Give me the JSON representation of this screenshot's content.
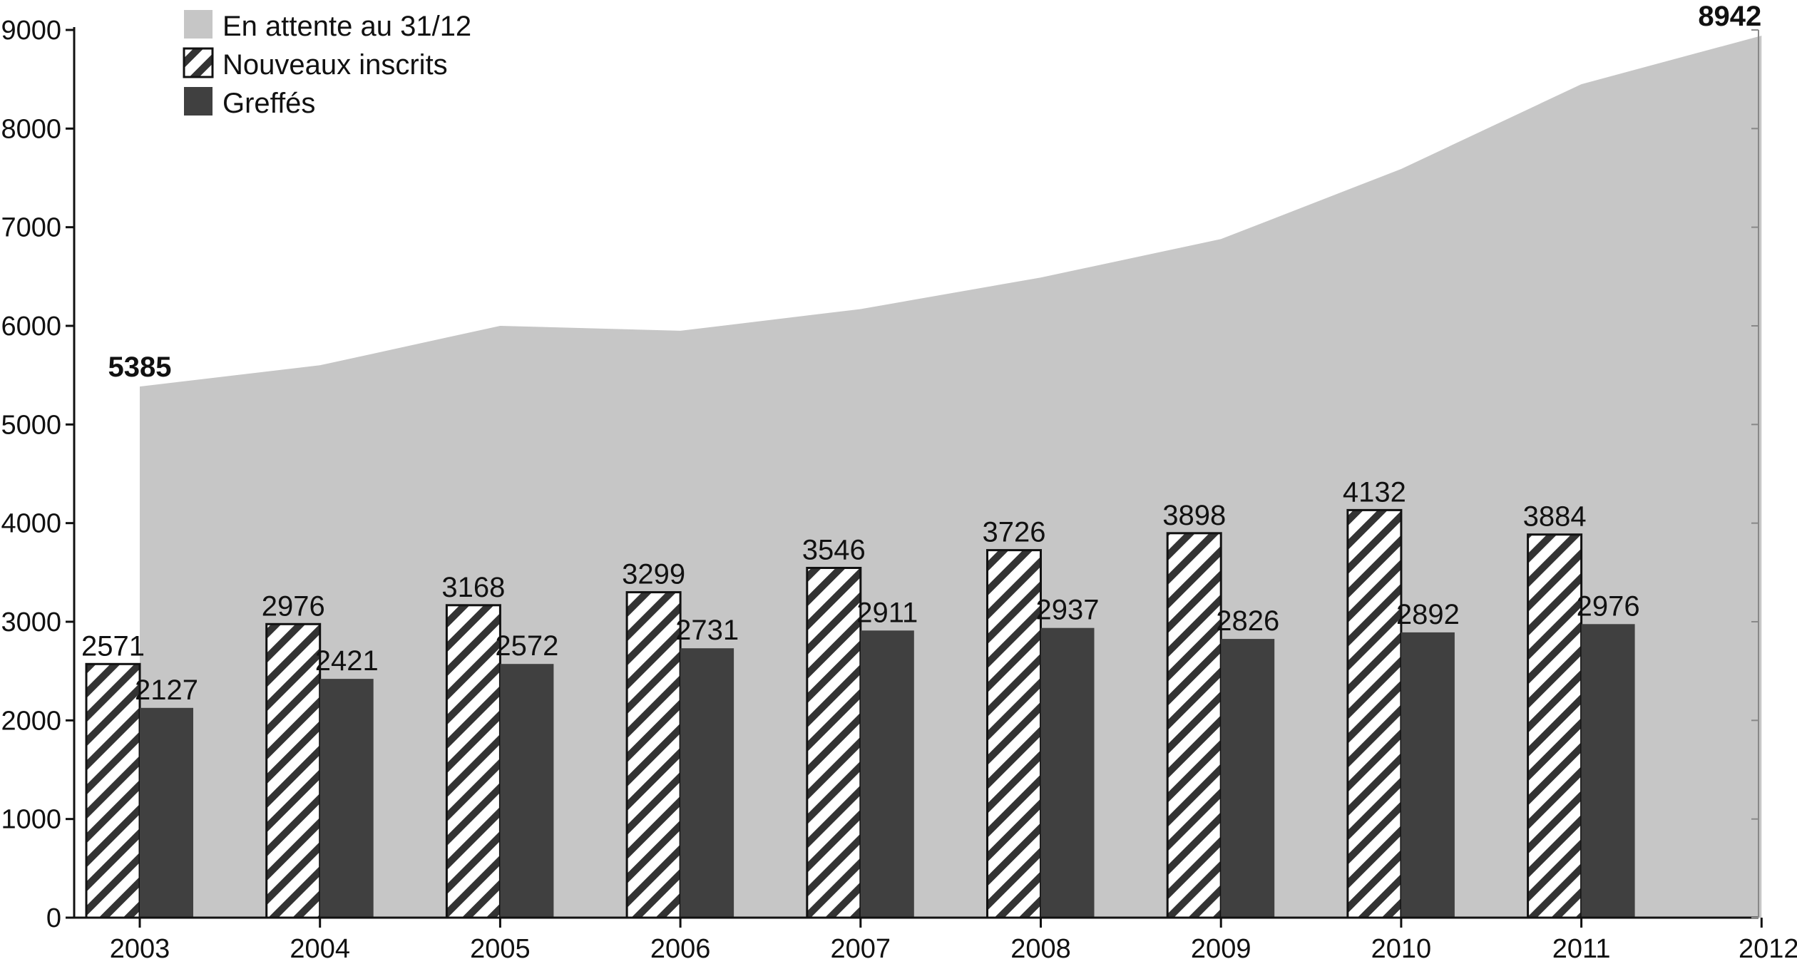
{
  "chart_data": {
    "type": "bar",
    "categories": [
      "2003",
      "2004",
      "2005",
      "2006",
      "2007",
      "2008",
      "2009",
      "2010",
      "2011"
    ],
    "x_axis_ticks": [
      "2003",
      "2004",
      "2005",
      "2006",
      "2007",
      "2008",
      "2009",
      "2010",
      "2011",
      "2012"
    ],
    "y_ticks": [
      0,
      1000,
      2000,
      3000,
      4000,
      5000,
      6000,
      7000,
      8000,
      9000
    ],
    "ylim": [
      0,
      9000
    ],
    "grid": false,
    "legend_position": "top-left",
    "area_series": {
      "name": "En attente au 31/12",
      "x": [
        "2003",
        "2004",
        "2005",
        "2006",
        "2007",
        "2008",
        "2009",
        "2010",
        "2011",
        "2012"
      ],
      "values": [
        5385,
        5600,
        6000,
        5950,
        6170,
        6490,
        6880,
        7590,
        8450,
        8942
      ],
      "labels": [
        {
          "x": "2003",
          "text": "5385"
        },
        {
          "x": "2012",
          "text": "8942"
        }
      ],
      "color": "#c6c6c6"
    },
    "series": [
      {
        "name": "Nouveaux inscrits",
        "values": [
          2571,
          2976,
          3168,
          3299,
          3546,
          3726,
          3898,
          4132,
          3884
        ],
        "value_labels": [
          "2571",
          "2976",
          "3168",
          "3299",
          "3546",
          "3726",
          "3898",
          "4132",
          "3884"
        ],
        "pattern": "diagonal-stripes",
        "color": "#333333"
      },
      {
        "name": "Greffés",
        "values": [
          2127,
          2421,
          2572,
          2731,
          2911,
          2937,
          2826,
          2892,
          2976
        ],
        "value_labels": [
          "2127",
          "2421",
          "2572",
          "2731",
          "2911",
          "2937",
          "2826",
          "2892",
          "2976"
        ],
        "color": "#404040"
      }
    ]
  }
}
